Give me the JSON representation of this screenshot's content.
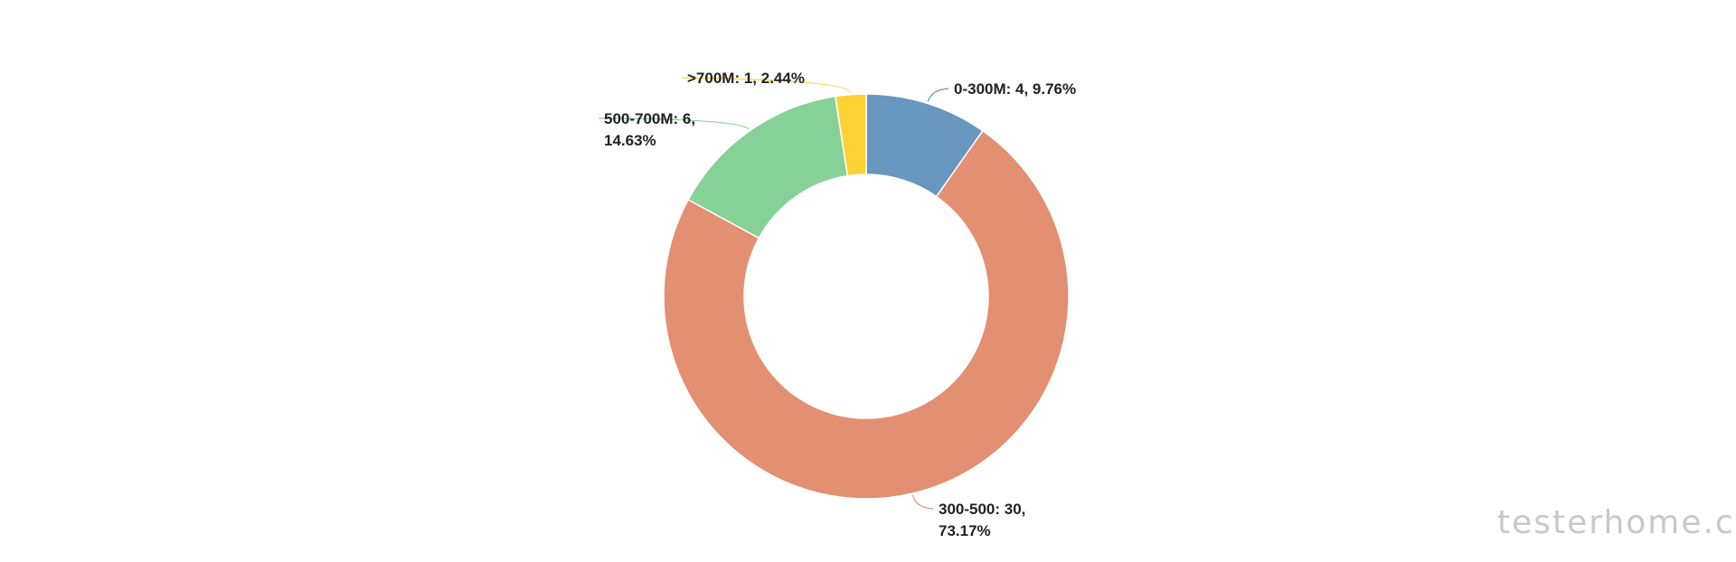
{
  "chart_data": {
    "type": "pie",
    "donut": true,
    "title": "",
    "legend": "none",
    "categories": [
      "0-300M",
      "300-500",
      "500-700M",
      ">700M"
    ],
    "values": [
      4,
      30,
      6,
      1
    ],
    "percents": [
      "9.76%",
      "73.17%",
      "14.63%",
      "2.44%"
    ],
    "colors": [
      "#6897bf",
      "#e28f72",
      "#86d198",
      "#fdd235"
    ],
    "labels": [
      [
        "0-300M: 4, 9.76%"
      ],
      [
        "300-500: 30,",
        "73.17%"
      ],
      [
        "500-700M: 6,",
        "14.63%"
      ],
      [
        ">700M: 1, 2.44%"
      ]
    ]
  },
  "watermark": "testerhome.com"
}
